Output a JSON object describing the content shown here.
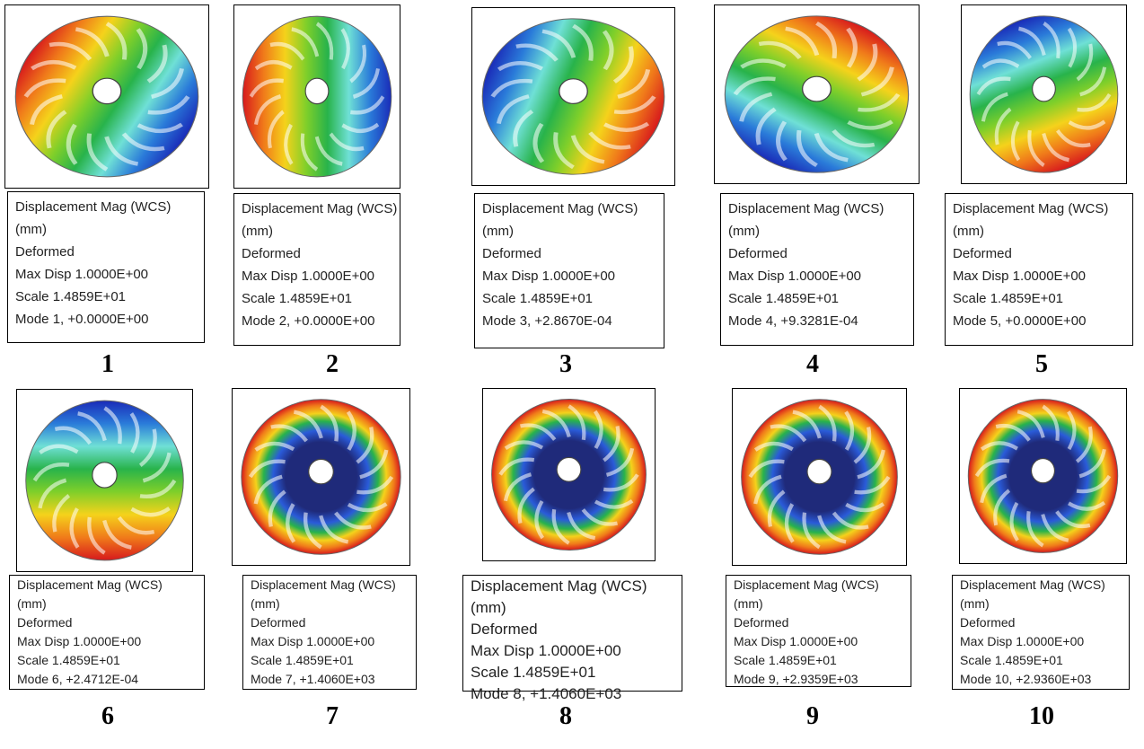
{
  "panels": [
    {
      "lines": [
        "Displacement Mag (WCS)",
        "(mm)",
        "Deformed",
        "Max Disp  1.0000E+00",
        "Scale  1.4859E+01",
        "Mode 1,  +0.0000E+00"
      ],
      "label": "1"
    },
    {
      "lines": [
        "Displacement Mag (WCS)",
        "(mm)",
        "Deformed",
        "Max Disp  1.0000E+00",
        "Scale  1.4859E+01",
        "Mode 2,  +0.0000E+00"
      ],
      "label": "2"
    },
    {
      "lines": [
        "Displacement Mag (WCS)",
        "(mm)",
        "Deformed",
        "Max Disp  1.0000E+00",
        "Scale  1.4859E+01",
        "Mode 3,  +2.8670E-04"
      ],
      "label": "3"
    },
    {
      "lines": [
        "Displacement Mag (WCS)",
        "(mm)",
        "Deformed",
        "Max Disp  1.0000E+00",
        "Scale  1.4859E+01",
        "Mode 4,  +9.3281E-04"
      ],
      "label": "4"
    },
    {
      "lines": [
        "Displacement Mag (WCS)",
        "(mm)",
        "Deformed",
        "Max Disp  1.0000E+00",
        "Scale  1.4859E+01",
        "Mode 5,  +0.0000E+00"
      ],
      "label": "5"
    },
    {
      "lines": [
        "Displacement Mag (WCS)",
        "(mm)",
        "Deformed",
        "Max Disp  1.0000E+00",
        "Scale  1.4859E+01",
        "Mode 6,  +2.4712E-04"
      ],
      "label": "6"
    },
    {
      "lines": [
        "Displacement Mag (WCS)",
        "(mm)",
        "Deformed",
        "Max Disp  1.0000E+00",
        "Scale  1.4859E+01",
        "Mode 7,  +1.4060E+03"
      ],
      "label": "7"
    },
    {
      "lines": [
        "Displacement Mag (WCS)",
        "(mm)",
        "Deformed",
        "Max Disp  1.0000E+00",
        "Scale  1.4859E+01",
        "Mode 8,  +1.4060E+03"
      ],
      "label": "8"
    },
    {
      "lines": [
        "Displacement Mag (WCS)",
        "(mm)",
        "Deformed",
        "Max Disp  1.0000E+00",
        "Scale  1.4859E+01",
        "Mode 9,  +2.9359E+03"
      ],
      "label": "9"
    },
    {
      "lines": [
        "Displacement Mag (WCS)",
        "(mm)",
        "Deformed",
        "Max Disp  1.0000E+00",
        "Scale  1.4859E+01",
        "Mode 10,  +2.9360E+03"
      ],
      "label": "10"
    }
  ]
}
